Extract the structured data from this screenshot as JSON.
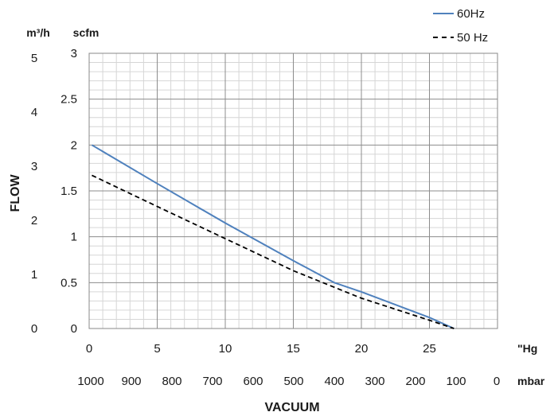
{
  "chart_data": {
    "type": "line",
    "xlabel": "VACUUM",
    "ylabel": "FLOW",
    "x_unit": "\"Hg",
    "x2_unit": "mbar",
    "y_unit": "scfm",
    "y2_unit": "m³/h",
    "xlim": [
      0,
      30
    ],
    "ylim": [
      0,
      3
    ],
    "x_ticks": [
      "0",
      "5",
      "10",
      "15",
      "20",
      "25"
    ],
    "y_ticks": [
      "0",
      "0.5",
      "1",
      "1.5",
      "2",
      "2.5",
      "3"
    ],
    "x2_ticks": [
      "1000",
      "900",
      "800",
      "700",
      "600",
      "500",
      "400",
      "300",
      "200",
      "100",
      "0"
    ],
    "y2_ticks": [
      "0",
      "1",
      "2",
      "3",
      "4",
      "5"
    ],
    "grid": true,
    "legend_position": "top-right",
    "series": [
      {
        "name": "60Hz",
        "color": "#4f81bd",
        "style": "solid",
        "x": [
          0.2,
          5,
          10,
          15,
          18,
          20,
          25,
          26.8
        ],
        "y": [
          2.0,
          1.58,
          1.15,
          0.74,
          0.5,
          0.4,
          0.12,
          0.0
        ]
      },
      {
        "name": "50 Hz",
        "color": "#000000",
        "style": "dashed",
        "x": [
          0.2,
          5,
          10,
          15,
          20,
          25,
          26.8
        ],
        "y": [
          1.67,
          1.33,
          0.98,
          0.63,
          0.33,
          0.09,
          0.0
        ]
      }
    ]
  }
}
